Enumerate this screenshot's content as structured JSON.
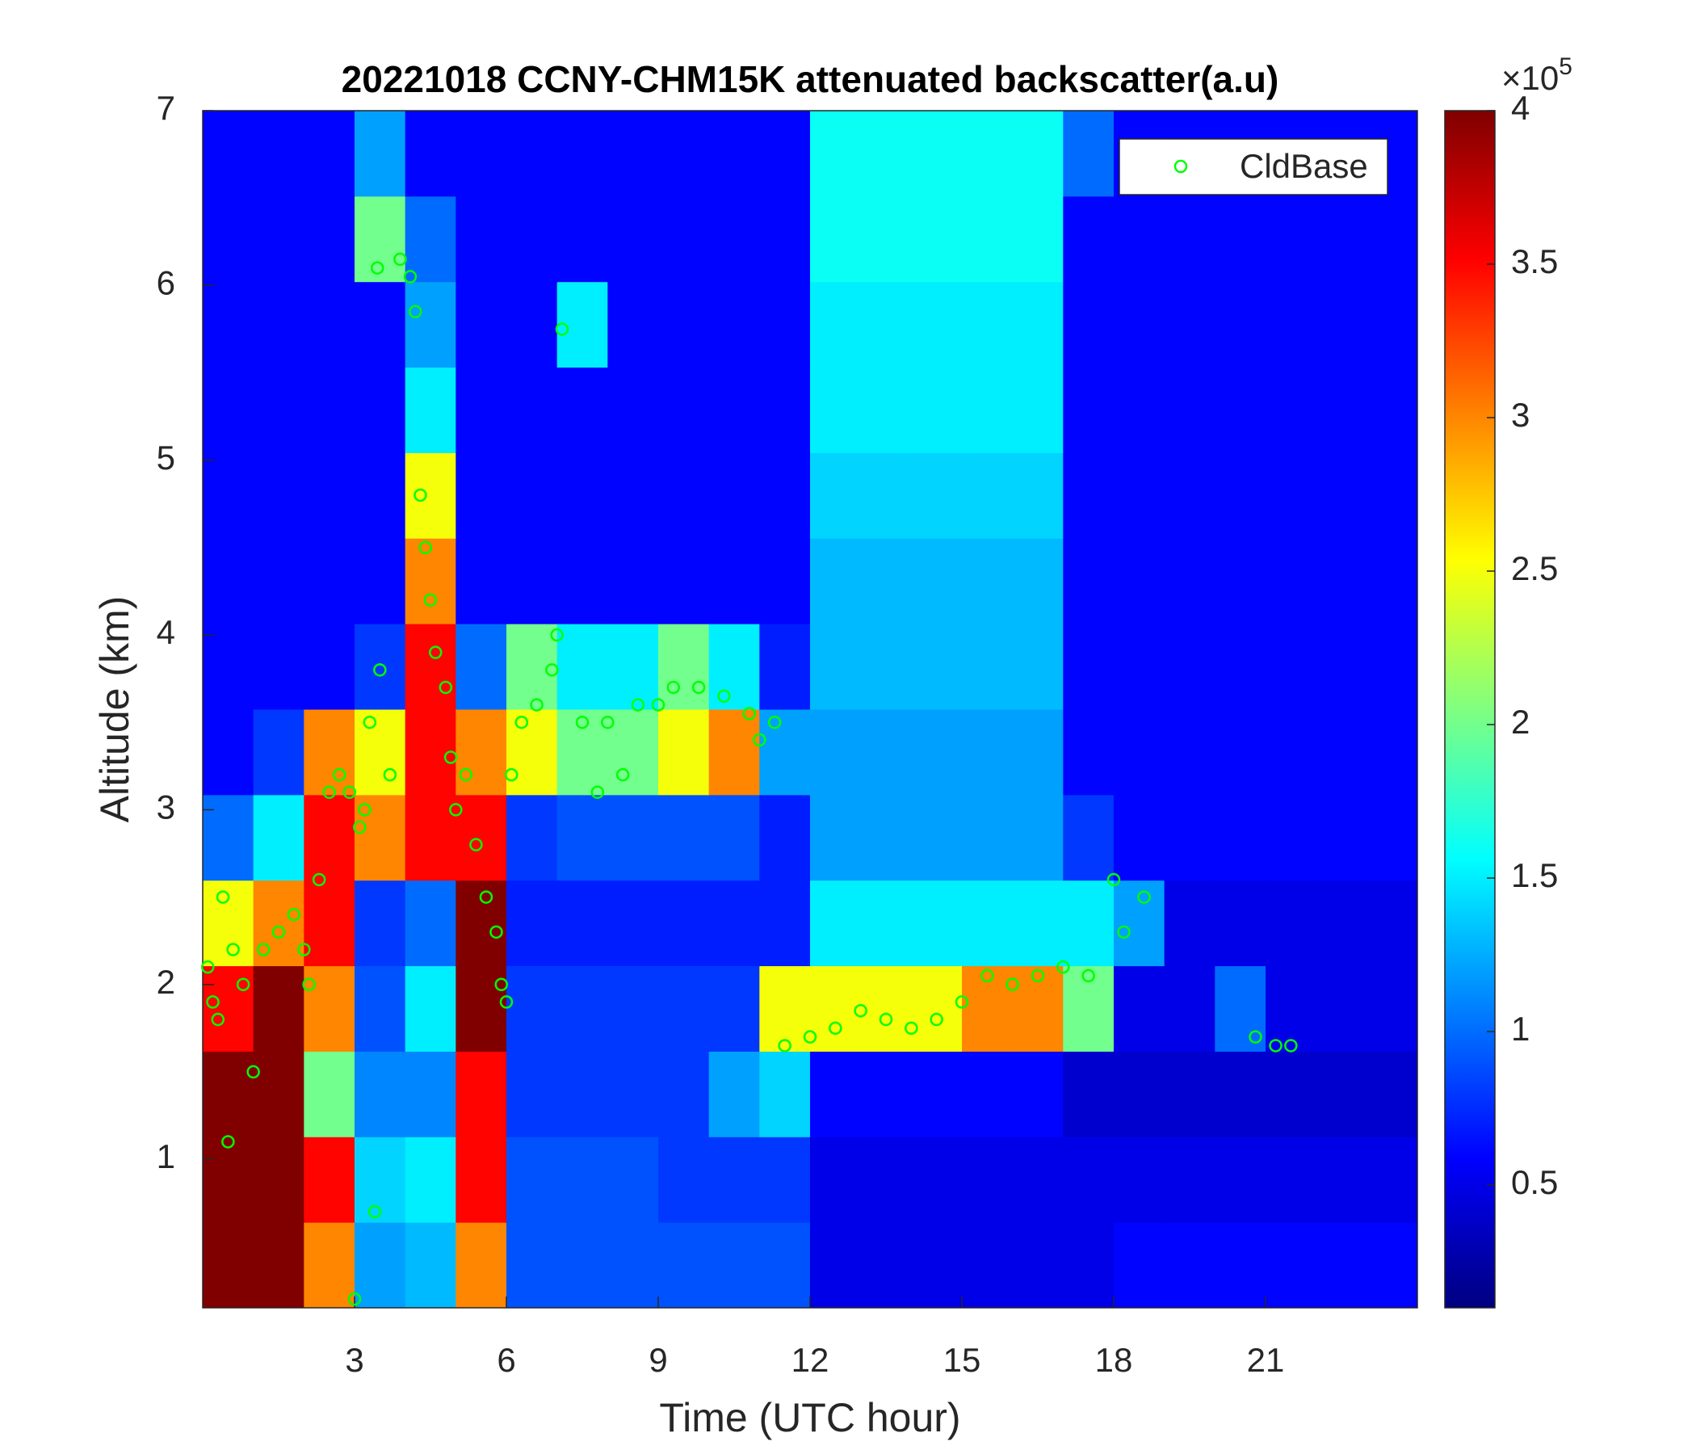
{
  "chart_data": {
    "type": "heatmap",
    "title": "20221018 CCNY-CHM15K attenuated backscatter(a.u)",
    "xlabel": "Time (UTC hour)",
    "ylabel": "Altitude (km)",
    "xlim": [
      0,
      24
    ],
    "ylim": [
      0.15,
      7
    ],
    "xticks": [
      3,
      6,
      9,
      12,
      15,
      18,
      21
    ],
    "yticks": [
      1,
      2,
      3,
      4,
      5,
      6,
      7
    ],
    "colormap": "jet",
    "clim": [
      0.1,
      4
    ],
    "cticks": [
      0.5,
      1,
      1.5,
      2,
      2.5,
      3,
      3.5,
      4
    ],
    "colorbar_multiplier": {
      "base": "×10",
      "exponent": "5"
    },
    "z": [
      [
        4,
        4,
        3,
        1.2,
        1.3,
        3,
        0.9,
        0.9,
        0.9,
        0.9,
        0.9,
        0.9,
        0.5,
        0.5,
        0.5,
        0.5,
        0.5,
        0.5,
        0.6,
        0.6,
        0.6,
        0.6,
        0.6,
        0.6
      ],
      [
        4,
        4,
        3.5,
        1.4,
        1.5,
        3.5,
        0.9,
        0.9,
        0.9,
        0.8,
        0.8,
        0.8,
        0.5,
        0.5,
        0.5,
        0.5,
        0.5,
        0.5,
        0.5,
        0.5,
        0.5,
        0.5,
        0.5,
        0.5
      ],
      [
        4,
        4,
        2,
        1.1,
        1.1,
        3.5,
        0.8,
        0.8,
        0.8,
        0.8,
        1.2,
        1.4,
        0.6,
        0.6,
        0.6,
        0.6,
        0.6,
        0.4,
        0.4,
        0.4,
        0.4,
        0.4,
        0.4,
        0.4
      ],
      [
        3.5,
        4,
        3,
        0.9,
        1.5,
        4,
        0.8,
        0.8,
        0.8,
        0.8,
        0.8,
        2.5,
        2.5,
        2.5,
        2.5,
        3,
        3,
        2,
        0.5,
        0.5,
        1,
        0.5,
        0.5,
        0.5
      ],
      [
        2.5,
        3,
        3.5,
        0.8,
        1,
        4,
        0.7,
        0.7,
        0.7,
        0.7,
        0.7,
        0.7,
        1.5,
        1.5,
        1.5,
        1.5,
        1.5,
        1.5,
        1.2,
        0.5,
        0.5,
        0.5,
        0.5,
        0.5
      ],
      [
        1,
        1.5,
        3.5,
        3,
        3.5,
        3.5,
        0.8,
        0.9,
        0.9,
        0.9,
        0.9,
        0.7,
        1.2,
        1.2,
        1.2,
        1.2,
        1.2,
        0.8,
        0.6,
        0.6,
        0.6,
        0.6,
        0.6,
        0.6
      ],
      [
        0.6,
        0.8,
        3,
        2.5,
        3.5,
        3,
        2.5,
        2,
        2,
        2.5,
        3,
        1.2,
        1.2,
        1.2,
        1.2,
        1.2,
        1.2,
        0.6,
        0.6,
        0.6,
        0.6,
        0.6,
        0.6,
        0.6
      ],
      [
        0.6,
        0.6,
        0.6,
        0.8,
        3.5,
        1,
        2,
        1.5,
        1.5,
        2,
        1.5,
        0.7,
        1.3,
        1.3,
        1.3,
        1.3,
        1.3,
        0.6,
        0.6,
        0.6,
        0.6,
        0.6,
        0.6,
        0.6
      ],
      [
        0.6,
        0.6,
        0.6,
        0.6,
        3,
        0.6,
        0.6,
        0.6,
        0.6,
        0.6,
        0.6,
        0.6,
        1.3,
        1.3,
        1.3,
        1.3,
        1.3,
        0.6,
        0.6,
        0.6,
        0.6,
        0.6,
        0.6,
        0.6
      ],
      [
        0.6,
        0.6,
        0.6,
        0.6,
        2.5,
        0.6,
        0.6,
        0.6,
        0.6,
        0.6,
        0.6,
        0.6,
        1.4,
        1.4,
        1.4,
        1.4,
        1.4,
        0.6,
        0.6,
        0.6,
        0.6,
        0.6,
        0.6,
        0.6
      ],
      [
        0.6,
        0.6,
        0.6,
        0.6,
        1.5,
        0.6,
        0.6,
        0.6,
        0.6,
        0.6,
        0.6,
        0.6,
        1.5,
        1.5,
        1.5,
        1.5,
        1.5,
        0.6,
        0.6,
        0.6,
        0.6,
        0.6,
        0.6,
        0.6
      ],
      [
        0.6,
        0.6,
        0.6,
        0.6,
        1.2,
        0.6,
        0.6,
        1.5,
        0.6,
        0.6,
        0.6,
        0.6,
        1.5,
        1.5,
        1.5,
        1.5,
        1.5,
        0.6,
        0.6,
        0.6,
        0.6,
        0.6,
        0.6,
        0.6
      ],
      [
        0.6,
        0.6,
        0.6,
        2,
        1,
        0.6,
        0.6,
        0.6,
        0.6,
        0.6,
        0.6,
        0.6,
        1.6,
        1.6,
        1.6,
        1.6,
        1.6,
        0.6,
        0.6,
        0.6,
        0.6,
        0.6,
        0.6,
        0.6
      ],
      [
        0.6,
        0.6,
        0.6,
        1.2,
        0.6,
        0.6,
        0.6,
        0.6,
        0.6,
        0.6,
        0.6,
        0.6,
        1.6,
        1.6,
        1.6,
        1.6,
        1.6,
        1,
        0.6,
        0.6,
        0.6,
        0.6,
        0.6,
        0.6
      ]
    ],
    "legend": "upper right",
    "series": [
      {
        "name": "CldBase",
        "type": "scatter",
        "color": "#00ff00",
        "x": [
          0.1,
          0.2,
          0.3,
          0.4,
          0.5,
          0.6,
          0.8,
          1.0,
          1.2,
          1.5,
          1.8,
          2.0,
          2.1,
          2.3,
          2.5,
          2.7,
          2.9,
          3.0,
          3.1,
          3.2,
          3.3,
          3.4,
          3.45,
          3.5,
          3.7,
          3.9,
          4.1,
          4.2,
          4.3,
          4.4,
          4.5,
          4.6,
          4.8,
          4.9,
          5.0,
          5.2,
          5.4,
          5.6,
          5.8,
          5.9,
          6.0,
          6.1,
          6.3,
          6.6,
          6.9,
          7.0,
          7.1,
          7.5,
          7.8,
          8.0,
          8.3,
          8.6,
          9.0,
          9.3,
          9.8,
          10.3,
          10.8,
          11.0,
          11.3,
          11.5,
          12.0,
          12.5,
          13.0,
          13.5,
          14.0,
          14.5,
          15.0,
          15.5,
          16.0,
          16.5,
          17.0,
          17.5,
          18.0,
          18.2,
          18.6,
          20.8,
          21.2,
          21.5
        ],
        "y": [
          2.1,
          1.9,
          1.8,
          2.5,
          1.1,
          2.2,
          2.0,
          1.5,
          2.2,
          2.3,
          2.4,
          2.2,
          2.0,
          2.6,
          3.1,
          3.2,
          3.1,
          0.2,
          2.9,
          3.0,
          3.5,
          0.7,
          6.1,
          3.8,
          3.2,
          6.15,
          6.05,
          5.85,
          4.8,
          4.5,
          4.2,
          3.9,
          3.7,
          3.3,
          3.0,
          3.2,
          2.8,
          2.5,
          2.3,
          2.0,
          1.9,
          3.2,
          3.5,
          3.6,
          3.8,
          4.0,
          5.75,
          3.5,
          3.1,
          3.5,
          3.2,
          3.6,
          3.6,
          3.7,
          3.7,
          3.65,
          3.55,
          3.4,
          3.5,
          1.65,
          1.7,
          1.75,
          1.85,
          1.8,
          1.75,
          1.8,
          1.9,
          2.05,
          2.0,
          2.05,
          2.1,
          2.05,
          2.6,
          2.3,
          2.5,
          1.7,
          1.65,
          1.65
        ]
      }
    ]
  }
}
